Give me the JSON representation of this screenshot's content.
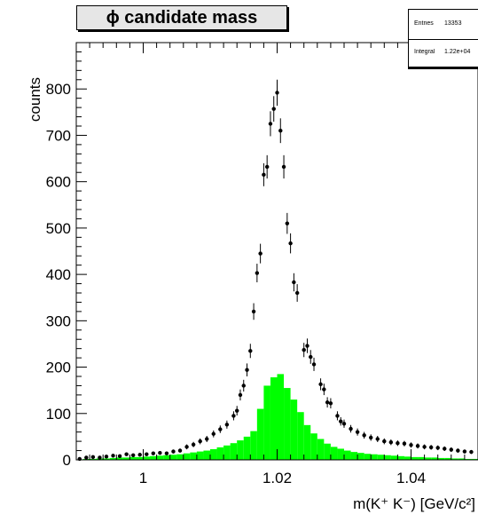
{
  "title": "ϕ candidate mass",
  "stats": {
    "entries_label": "Entries",
    "entries_value": "13353",
    "integral_label": "Integral",
    "integral_value": "1.22e+04"
  },
  "chart_data": {
    "type": "bar",
    "title": "ϕ candidate mass",
    "xlabel": "m(K⁺ K⁻) [GeV/c²]",
    "ylabel": "counts",
    "xlim": [
      0.99,
      1.05
    ],
    "ylim": [
      0,
      900
    ],
    "x_ticks": [
      "1",
      "1.02",
      "1.04"
    ],
    "y_ticks": [
      "0",
      "100",
      "200",
      "300",
      "400",
      "500",
      "600",
      "700",
      "800"
    ],
    "grid": false,
    "colors": {
      "signal_fill": "#00ff00",
      "points": "#000000"
    },
    "series": [
      {
        "type": "errorbar",
        "points": [
          [
            0.9905,
            2
          ],
          [
            0.9915,
            5
          ],
          [
            0.9925,
            6
          ],
          [
            0.9935,
            5
          ],
          [
            0.9945,
            7
          ],
          [
            0.9955,
            9
          ],
          [
            0.9965,
            8
          ],
          [
            0.9975,
            12
          ],
          [
            0.9985,
            10
          ],
          [
            0.9995,
            11
          ],
          [
            1.0005,
            12
          ],
          [
            1.0015,
            14
          ],
          [
            1.0025,
            15
          ],
          [
            1.0035,
            14
          ],
          [
            1.0045,
            18
          ],
          [
            1.0055,
            20
          ],
          [
            1.0065,
            28
          ],
          [
            1.0075,
            33
          ],
          [
            1.0085,
            40
          ],
          [
            1.0095,
            45
          ],
          [
            1.0105,
            56
          ],
          [
            1.0115,
            66
          ],
          [
            1.0125,
            76
          ],
          [
            1.0135,
            95
          ],
          [
            1.014,
            106
          ],
          [
            1.0145,
            140
          ],
          [
            1.015,
            160
          ],
          [
            1.0155,
            194
          ],
          [
            1.016,
            235
          ],
          [
            1.0165,
            320
          ],
          [
            1.017,
            403
          ],
          [
            1.0175,
            445
          ],
          [
            1.018,
            615
          ],
          [
            1.0185,
            632
          ],
          [
            1.019,
            725
          ],
          [
            1.0195,
            757
          ],
          [
            1.02,
            792
          ],
          [
            1.0205,
            710
          ],
          [
            1.021,
            632
          ],
          [
            1.0215,
            510
          ],
          [
            1.022,
            467
          ],
          [
            1.0225,
            383
          ],
          [
            1.023,
            360
          ],
          [
            1.024,
            237
          ],
          [
            1.0245,
            246
          ],
          [
            1.025,
            222
          ],
          [
            1.0255,
            206
          ],
          [
            1.0265,
            163
          ],
          [
            1.027,
            152
          ],
          [
            1.0275,
            124
          ],
          [
            1.028,
            122
          ],
          [
            1.029,
            95
          ],
          [
            1.0295,
            83
          ],
          [
            1.03,
            78
          ],
          [
            1.031,
            67
          ],
          [
            1.032,
            60
          ],
          [
            1.033,
            53
          ],
          [
            1.034,
            48
          ],
          [
            1.035,
            45
          ],
          [
            1.036,
            40
          ],
          [
            1.037,
            38
          ],
          [
            1.038,
            36
          ],
          [
            1.039,
            35
          ],
          [
            1.04,
            32
          ],
          [
            1.041,
            30
          ],
          [
            1.042,
            28
          ],
          [
            1.043,
            27
          ],
          [
            1.044,
            26
          ],
          [
            1.045,
            24
          ],
          [
            1.046,
            22
          ],
          [
            1.047,
            20
          ],
          [
            1.048,
            18
          ],
          [
            1.049,
            17
          ]
        ]
      },
      {
        "type": "filled-histogram",
        "bin_width": 0.001,
        "bins": [
          [
            0.99,
            1
          ],
          [
            0.991,
            2
          ],
          [
            0.992,
            2
          ],
          [
            0.993,
            3
          ],
          [
            0.994,
            3
          ],
          [
            0.995,
            4
          ],
          [
            0.996,
            5
          ],
          [
            0.997,
            5
          ],
          [
            0.998,
            6
          ],
          [
            0.999,
            6
          ],
          [
            1.0,
            7
          ],
          [
            1.001,
            8
          ],
          [
            1.002,
            9
          ],
          [
            1.003,
            10
          ],
          [
            1.004,
            11
          ],
          [
            1.005,
            12
          ],
          [
            1.006,
            14
          ],
          [
            1.007,
            16
          ],
          [
            1.008,
            18
          ],
          [
            1.009,
            20
          ],
          [
            1.01,
            23
          ],
          [
            1.011,
            27
          ],
          [
            1.012,
            31
          ],
          [
            1.013,
            36
          ],
          [
            1.014,
            42
          ],
          [
            1.015,
            50
          ],
          [
            1.016,
            62
          ],
          [
            1.017,
            110
          ],
          [
            1.018,
            160
          ],
          [
            1.019,
            178
          ],
          [
            1.02,
            185
          ],
          [
            1.021,
            155
          ],
          [
            1.022,
            130
          ],
          [
            1.023,
            103
          ],
          [
            1.024,
            75
          ],
          [
            1.025,
            57
          ],
          [
            1.026,
            45
          ],
          [
            1.027,
            35
          ],
          [
            1.028,
            28
          ],
          [
            1.029,
            24
          ],
          [
            1.03,
            20
          ],
          [
            1.031,
            17
          ],
          [
            1.032,
            15
          ],
          [
            1.033,
            13
          ],
          [
            1.034,
            12
          ],
          [
            1.035,
            11
          ],
          [
            1.036,
            10
          ],
          [
            1.037,
            9
          ],
          [
            1.038,
            8
          ],
          [
            1.039,
            7
          ],
          [
            1.04,
            6
          ],
          [
            1.041,
            6
          ],
          [
            1.042,
            5
          ],
          [
            1.043,
            5
          ],
          [
            1.044,
            4
          ],
          [
            1.045,
            4
          ],
          [
            1.046,
            3
          ],
          [
            1.047,
            3
          ],
          [
            1.048,
            2
          ],
          [
            1.049,
            2
          ]
        ]
      }
    ]
  }
}
